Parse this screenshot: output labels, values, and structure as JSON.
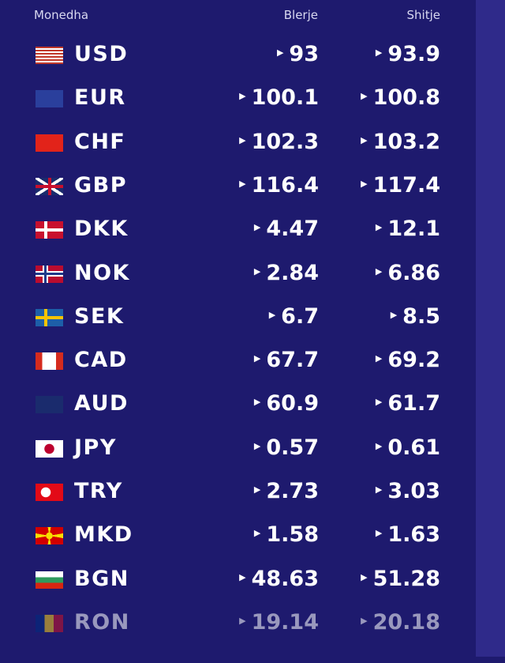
{
  "header": {
    "currency": "Monedha",
    "buy": "Blerje",
    "sell": "Shitje"
  },
  "rows": [
    {
      "code": "USD",
      "flag": "us-flag",
      "buy": "93",
      "sell": "93.9"
    },
    {
      "code": "EUR",
      "flag": "eu-flag",
      "buy": "100.1",
      "sell": "100.8"
    },
    {
      "code": "CHF",
      "flag": "ch-flag",
      "buy": "102.3",
      "sell": "103.2"
    },
    {
      "code": "GBP",
      "flag": "gb-flag",
      "buy": "116.4",
      "sell": "117.4"
    },
    {
      "code": "DKK",
      "flag": "dk-flag",
      "buy": "4.47",
      "sell": "12.1"
    },
    {
      "code": "NOK",
      "flag": "no-flag",
      "buy": "2.84",
      "sell": "6.86"
    },
    {
      "code": "SEK",
      "flag": "se-flag",
      "buy": "6.7",
      "sell": "8.5"
    },
    {
      "code": "CAD",
      "flag": "ca-flag",
      "buy": "67.7",
      "sell": "69.2"
    },
    {
      "code": "AUD",
      "flag": "au-flag",
      "buy": "60.9",
      "sell": "61.7"
    },
    {
      "code": "JPY",
      "flag": "jp-flag",
      "buy": "0.57",
      "sell": "0.61"
    },
    {
      "code": "TRY",
      "flag": "tr-flag",
      "buy": "2.73",
      "sell": "3.03"
    },
    {
      "code": "MKD",
      "flag": "mk-flag",
      "buy": "1.58",
      "sell": "1.63"
    },
    {
      "code": "BGN",
      "flag": "bg-flag",
      "buy": "48.63",
      "sell": "51.28"
    },
    {
      "code": "RON",
      "flag": "ro-flag",
      "buy": "19.14",
      "sell": "20.18"
    }
  ],
  "colors": {
    "background": "#1e1a6e",
    "side": "#2f2a8a",
    "text": "#ffffff"
  }
}
